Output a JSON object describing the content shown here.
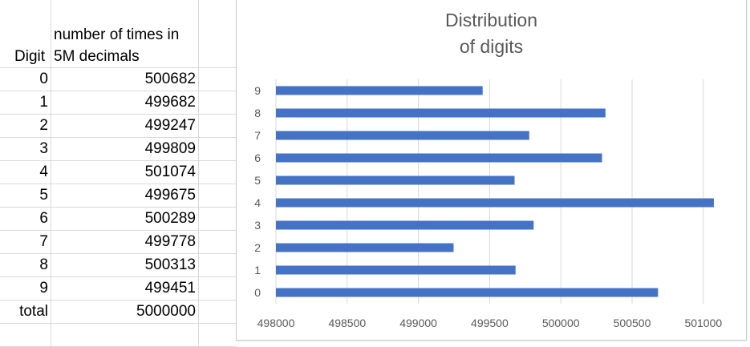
{
  "table": {
    "header_digit": "Digit",
    "header_count_line1": "number of times in",
    "header_count_line2": "5M decimals",
    "rows": [
      {
        "digit": "0",
        "count": "500682"
      },
      {
        "digit": "1",
        "count": "499682"
      },
      {
        "digit": "2",
        "count": "499247"
      },
      {
        "digit": "3",
        "count": "499809"
      },
      {
        "digit": "4",
        "count": "501074"
      },
      {
        "digit": "5",
        "count": "499675"
      },
      {
        "digit": "6",
        "count": "500289"
      },
      {
        "digit": "7",
        "count": "499778"
      },
      {
        "digit": "8",
        "count": "500313"
      },
      {
        "digit": "9",
        "count": "499451"
      }
    ],
    "total_label": "total",
    "total_value": "5000000"
  },
  "chart_data": {
    "type": "bar",
    "orientation": "horizontal",
    "title_line1": "Distribution",
    "title_line2": "of digits",
    "categories": [
      "0",
      "1",
      "2",
      "3",
      "4",
      "5",
      "6",
      "7",
      "8",
      "9"
    ],
    "values": [
      500682,
      499682,
      499247,
      499809,
      501074,
      499675,
      500289,
      499778,
      500313,
      499451
    ],
    "xlim": [
      498000,
      501100
    ],
    "xticks": [
      "498000",
      "498500",
      "499000",
      "499500",
      "500000",
      "500500",
      "501000"
    ],
    "grid": true,
    "bar_color": "#4472c4",
    "grid_color": "#d9d9d9",
    "axis_label_color": "#595959"
  }
}
